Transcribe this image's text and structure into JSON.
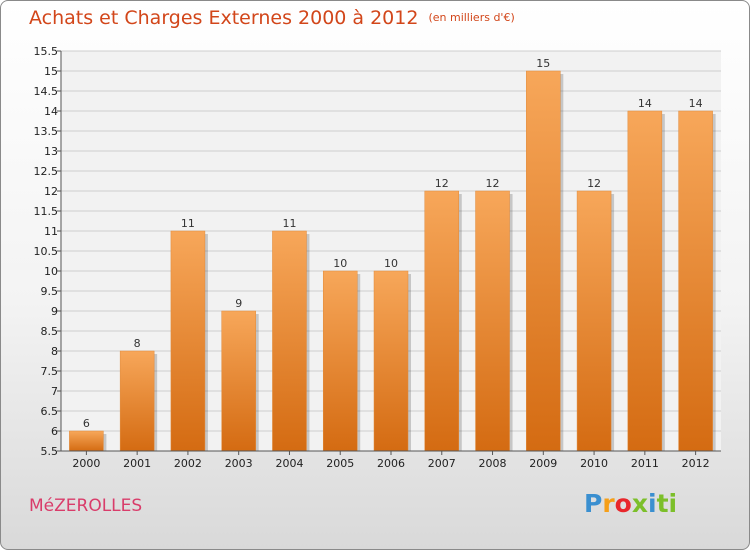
{
  "header": {
    "title": "Achats et Charges Externes 2000 à 2012",
    "unit": "(en milliers d'€)"
  },
  "footer": {
    "commune": "MéZEROLLES",
    "logo": "Proxiti"
  },
  "colors": {
    "bar_light": "#f7a75a",
    "bar_dark": "#d46b12",
    "title": "#d2461a",
    "commune": "#d93c6a"
  },
  "chart_data": {
    "type": "bar",
    "title": "Achats et Charges Externes 2000 à 2012",
    "subtitle": "(en milliers d'€)",
    "categories": [
      "2000",
      "2001",
      "2002",
      "2003",
      "2004",
      "2005",
      "2006",
      "2007",
      "2008",
      "2009",
      "2010",
      "2011",
      "2012"
    ],
    "values": [
      6,
      8,
      11,
      9,
      11,
      10,
      10,
      12,
      12,
      15,
      12,
      14,
      14
    ],
    "data_labels": [
      "6",
      "8",
      "11",
      "9",
      "11",
      "10",
      "10",
      "12",
      "12",
      "15",
      "12",
      "14",
      "14"
    ],
    "yticks": [
      "5.5",
      "6",
      "6.5",
      "7",
      "7.5",
      "8",
      "8.5",
      "9",
      "9.5",
      "10",
      "10.5",
      "11",
      "11.5",
      "12",
      "12.5",
      "13",
      "13.5",
      "14",
      "14.5",
      "15",
      "15.5"
    ],
    "ylim": [
      5.5,
      15.5
    ],
    "grid": true,
    "legend": "none"
  }
}
